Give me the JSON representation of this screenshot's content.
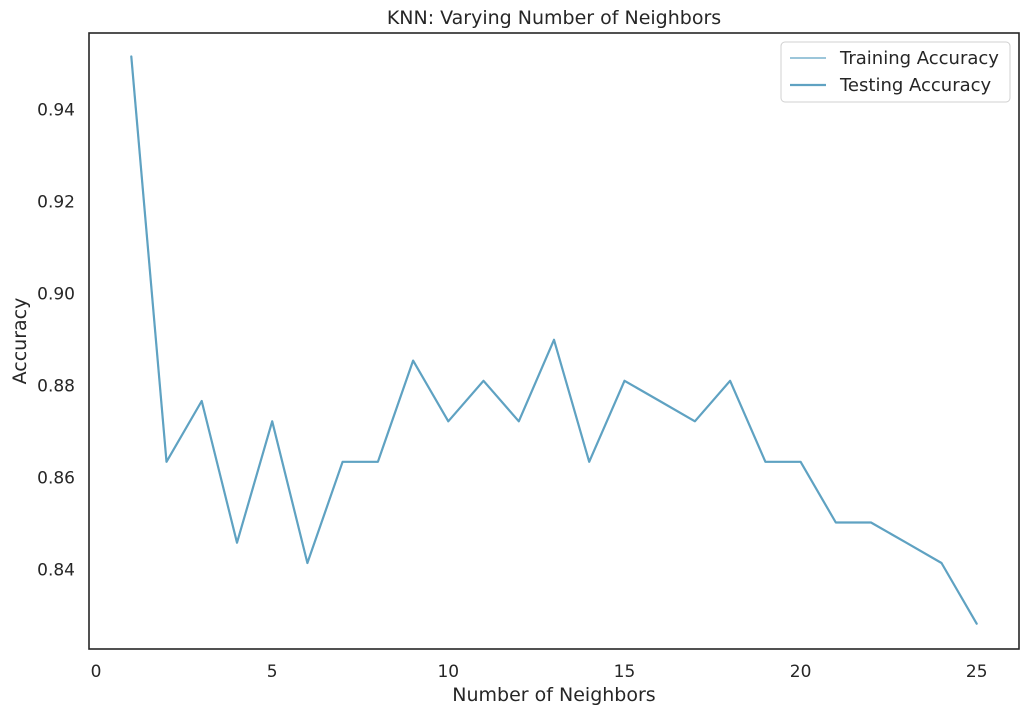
{
  "chart_data": {
    "type": "line",
    "title": "KNN: Varying Number of Neighbors",
    "xlabel": "Number of Neighbors",
    "ylabel": "Accuracy",
    "xlim": [
      -0.2,
      26.2
    ],
    "ylim": [
      0.8227,
      0.9566
    ],
    "xticks": [
      0,
      5,
      10,
      15,
      20,
      25
    ],
    "yticks": [
      0.84,
      0.86,
      0.88,
      0.9,
      0.92,
      0.94
    ],
    "ytick_labels": [
      "0.84",
      "0.86",
      "0.88",
      "0.90",
      "0.92",
      "0.94"
    ],
    "grid": false,
    "legend_position": "top-right",
    "x": [
      1,
      2,
      3,
      4,
      5,
      6,
      7,
      8,
      9,
      10,
      11,
      12,
      13,
      14,
      15,
      16,
      17,
      18,
      19,
      20,
      21,
      22,
      23,
      24,
      25
    ],
    "series": [
      {
        "name": "Training Accuracy",
        "color": "#7bb3cd",
        "values": [
          0.9515,
          0.8634,
          0.8766,
          0.8458,
          0.8722,
          0.8414,
          0.8634,
          0.8634,
          0.8854,
          0.8722,
          0.881,
          0.8722,
          0.8899,
          0.8634,
          0.881,
          0.8766,
          0.8722,
          0.881,
          0.8634,
          0.8634,
          0.8502,
          0.8502,
          0.8458,
          0.8414,
          0.8282
        ]
      },
      {
        "name": "Testing Accuracy",
        "color": "#5fa2c2",
        "values": [
          0.9515,
          0.8634,
          0.8766,
          0.8458,
          0.8722,
          0.8414,
          0.8634,
          0.8634,
          0.8854,
          0.8722,
          0.881,
          0.8722,
          0.8899,
          0.8634,
          0.881,
          0.8766,
          0.8722,
          0.881,
          0.8634,
          0.8634,
          0.8502,
          0.8502,
          0.8458,
          0.8414,
          0.8282
        ]
      }
    ]
  }
}
